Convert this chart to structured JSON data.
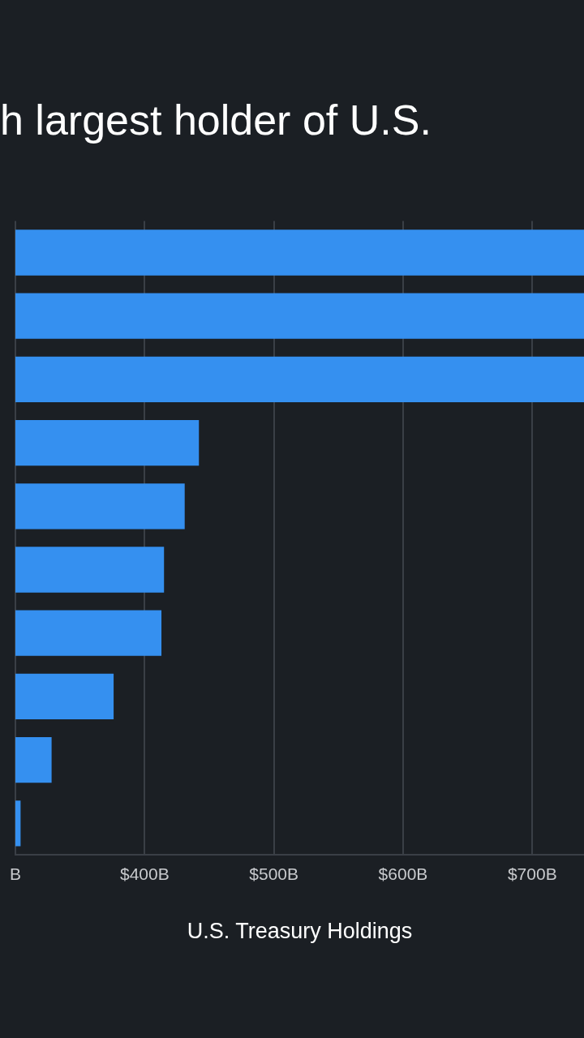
{
  "chart_data": {
    "type": "bar",
    "orientation": "horizontal",
    "title": "h largest holder of U.S.",
    "xlabel": "U.S. Treasury Holdings",
    "categories": [
      null,
      null,
      null,
      null,
      null,
      null,
      null,
      null,
      null,
      null
    ],
    "values": [
      740,
      740,
      740,
      442,
      431,
      415,
      413,
      376,
      328,
      304
    ],
    "color": "#3590f0",
    "xlim": [
      300,
      740
    ],
    "xticks": [
      {
        "value": 300,
        "label": "B"
      },
      {
        "value": 400,
        "label": "$400B"
      },
      {
        "value": 500,
        "label": "$500B"
      },
      {
        "value": 600,
        "label": "$600B"
      },
      {
        "value": 700,
        "label": "$700B"
      }
    ],
    "grid": "x",
    "tick_labels": "x",
    "legend": false
  }
}
